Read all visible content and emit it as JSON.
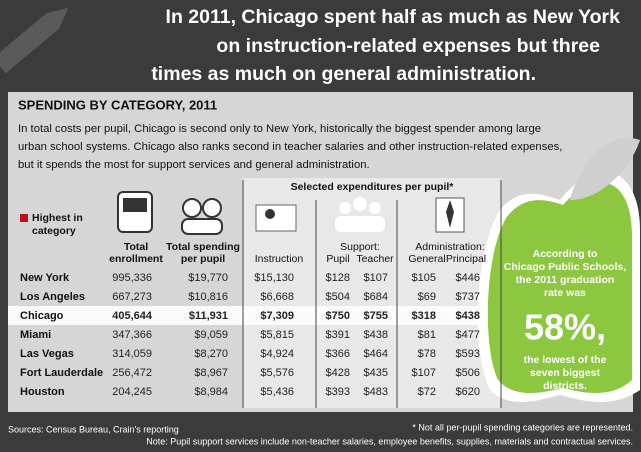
{
  "headline": [
    "In 2011, Chicago spent half as much as New York",
    "on instruction-related expenses but three",
    "times as much on general administration."
  ],
  "section_title": "SPENDING BY CATEGORY, 2011",
  "intro": [
    "In total costs per pupil, Chicago is second only to New York, historically the biggest spender among large",
    "urban school systems. Chicago also ranks second in teacher salaries and other instruction-related expenses,",
    "but it spends the most for support services and general administration."
  ],
  "legend": [
    "Highest in",
    "category"
  ],
  "table": {
    "group_header": "Selected expenditures per pupil*",
    "headers": {
      "enrollment": [
        "Total",
        "enrollment"
      ],
      "spending": [
        "Total spending",
        "per pupil"
      ],
      "instruction": "Instruction",
      "support": "Support:",
      "pupil": "Pupil",
      "teacher": "Teacher",
      "administration": "Administration:",
      "general": "General",
      "principal": "Principal"
    },
    "rows": [
      [
        "New York",
        "995,336",
        "$19,770",
        "$15,130",
        "$128",
        "$107",
        "$105",
        "$446"
      ],
      [
        "Los Angeles",
        "667,273",
        "$10,816",
        "$6,668",
        "$504",
        "$684",
        "$69",
        "$737"
      ],
      [
        "Chicago",
        "405,644",
        "$11,931",
        "$7,309",
        "$750",
        "$755",
        "$318",
        "$438"
      ],
      [
        "Miami",
        "347,366",
        "$9,059",
        "$5,815",
        "$391",
        "$438",
        "$81",
        "$477"
      ],
      [
        "Las Vegas",
        "314,059",
        "$8,270",
        "$4,924",
        "$366",
        "$464",
        "$78",
        "$593"
      ],
      [
        "Fort Lauderdale",
        "256,472",
        "$8,967",
        "$5,576",
        "$428",
        "$435",
        "$107",
        "$506"
      ],
      [
        "Houston",
        "204,245",
        "$8,984",
        "$5,436",
        "$393",
        "$483",
        "$72",
        "$620"
      ]
    ],
    "highest_in_category": [
      [
        0,
        1
      ],
      [
        0,
        2
      ],
      [
        0,
        3
      ],
      [
        1,
        7
      ],
      [
        2,
        4
      ],
      [
        2,
        5
      ],
      [
        2,
        6
      ]
    ],
    "highlight_color": "#b5121b",
    "selected_row": 2
  },
  "apple": {
    "text": [
      "According to",
      "Chicago Public Schools,",
      "the 2011 graduation",
      "rate was"
    ],
    "figure": "58%,",
    "tail": [
      "the lowest of the",
      "seven biggest",
      "districts."
    ]
  },
  "footer": {
    "sources": "Sources: Census Bureau, Crain's reporting",
    "asterisk": "* Not all per-pupil spending categories are represented.",
    "note": "Note: Pupil support services include non-teacher salaries, employee benefits, supplies, materials and contractual services."
  }
}
